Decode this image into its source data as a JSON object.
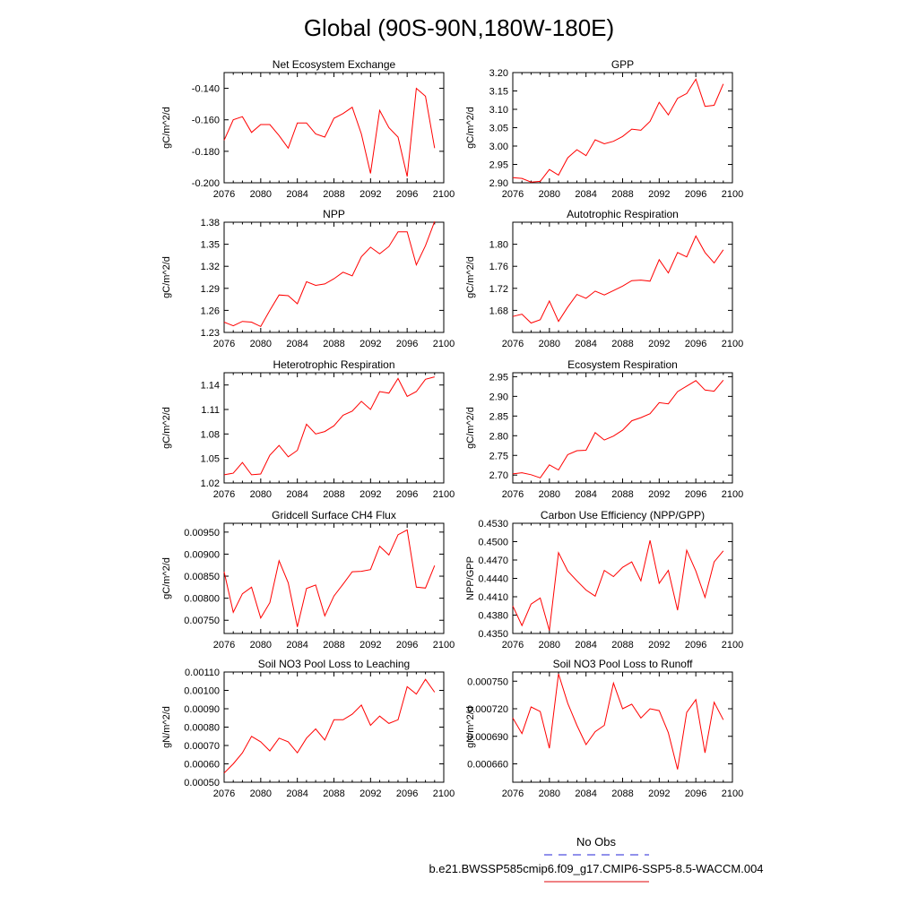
{
  "page_title": "Global (90S-90N,180W-180E)",
  "legend": {
    "obs_label": "No Obs",
    "obs_color": "#4f4fdf",
    "model_label": "b.e21.BWSSP585cmip6.f09_g17.CMIP6-SSP5-8.5-WACCM.004",
    "model_color": "#e8383b"
  },
  "series_color": "#ff0000",
  "chart_data": [
    {
      "type": "line",
      "title": "Net Ecosystem Exchange",
      "ylabel": "gC/m^2/d",
      "xlim": [
        2076,
        2100
      ],
      "ylim": [
        -0.2,
        -0.13
      ],
      "x_ticks": [
        "2076",
        "2080",
        "2084",
        "2088",
        "2092",
        "2096",
        "2100"
      ],
      "y_ticks": [
        -0.2,
        -0.18,
        -0.16,
        -0.14
      ],
      "y_tick_labels": [
        "-0.200",
        "-0.180",
        "-0.160",
        "-0.140"
      ],
      "x": [
        2076,
        2077,
        2078,
        2079,
        2080,
        2081,
        2082,
        2083,
        2084,
        2085,
        2086,
        2087,
        2088,
        2089,
        2090,
        2091,
        2092,
        2093,
        2094,
        2095,
        2096,
        2097,
        2098,
        2099
      ],
      "values": [
        -0.173,
        -0.16,
        -0.158,
        -0.168,
        -0.163,
        -0.163,
        -0.17,
        -0.178,
        -0.162,
        -0.162,
        -0.169,
        -0.171,
        -0.159,
        -0.156,
        -0.152,
        -0.169,
        -0.194,
        -0.154,
        -0.165,
        -0.171,
        -0.196,
        -0.14,
        -0.145,
        -0.178
      ]
    },
    {
      "type": "line",
      "title": "GPP",
      "ylabel": "gC/m^2/d",
      "xlim": [
        2076,
        2100
      ],
      "ylim": [
        2.9,
        3.2
      ],
      "x_ticks": [
        "2076",
        "2080",
        "2084",
        "2088",
        "2092",
        "2096",
        "2100"
      ],
      "y_ticks": [
        2.9,
        2.95,
        3.0,
        3.05,
        3.1,
        3.15,
        3.2
      ],
      "y_tick_labels": [
        "2.90",
        "2.95",
        "3.00",
        "3.05",
        "3.10",
        "3.15",
        "3.20"
      ],
      "x": [
        2076,
        2077,
        2078,
        2079,
        2080,
        2081,
        2082,
        2083,
        2084,
        2085,
        2086,
        2087,
        2088,
        2089,
        2090,
        2091,
        2092,
        2093,
        2094,
        2095,
        2096,
        2097,
        2098,
        2099
      ],
      "values": [
        2.914,
        2.912,
        2.902,
        2.904,
        2.936,
        2.921,
        2.968,
        2.99,
        2.974,
        3.017,
        3.006,
        3.013,
        3.026,
        3.046,
        3.043,
        3.067,
        3.119,
        3.085,
        3.13,
        3.143,
        3.182,
        3.108,
        3.111,
        3.169
      ]
    },
    {
      "type": "line",
      "title": "NPP",
      "ylabel": "gC/m^2/d",
      "xlim": [
        2076,
        2100
      ],
      "ylim": [
        1.23,
        1.38
      ],
      "x_ticks": [
        "2076",
        "2080",
        "2084",
        "2088",
        "2092",
        "2096",
        "2100"
      ],
      "y_ticks": [
        1.23,
        1.26,
        1.29,
        1.32,
        1.35,
        1.38
      ],
      "y_tick_labels": [
        "1.23",
        "1.26",
        "1.29",
        "1.32",
        "1.35",
        "1.38"
      ],
      "x": [
        2076,
        2077,
        2078,
        2079,
        2080,
        2081,
        2082,
        2083,
        2084,
        2085,
        2086,
        2087,
        2088,
        2089,
        2090,
        2091,
        2092,
        2093,
        2094,
        2095,
        2096,
        2097,
        2098,
        2099
      ],
      "values": [
        1.244,
        1.239,
        1.245,
        1.244,
        1.238,
        1.26,
        1.281,
        1.28,
        1.269,
        1.299,
        1.294,
        1.296,
        1.303,
        1.312,
        1.307,
        1.333,
        1.346,
        1.337,
        1.347,
        1.367,
        1.367,
        1.322,
        1.348,
        1.381
      ]
    },
    {
      "type": "line",
      "title": "Autotrophic Respiration",
      "ylabel": "gC/m^2/d",
      "xlim": [
        2076,
        2100
      ],
      "ylim": [
        1.64,
        1.84
      ],
      "x_ticks": [
        "2076",
        "2080",
        "2084",
        "2088",
        "2092",
        "2096",
        "2100"
      ],
      "y_ticks": [
        1.68,
        1.72,
        1.76,
        1.8
      ],
      "y_tick_labels": [
        "1.68",
        "1.72",
        "1.76",
        "1.80"
      ],
      "x": [
        2076,
        2077,
        2078,
        2079,
        2080,
        2081,
        2082,
        2083,
        2084,
        2085,
        2086,
        2087,
        2088,
        2089,
        2090,
        2091,
        2092,
        2093,
        2094,
        2095,
        2096,
        2097,
        2098,
        2099
      ],
      "values": [
        1.669,
        1.673,
        1.657,
        1.663,
        1.697,
        1.66,
        1.686,
        1.709,
        1.702,
        1.715,
        1.708,
        1.716,
        1.724,
        1.734,
        1.735,
        1.733,
        1.772,
        1.748,
        1.785,
        1.777,
        1.815,
        1.785,
        1.766,
        1.79
      ]
    },
    {
      "type": "line",
      "title": "Heterotrophic Respiration",
      "ylabel": "gC/m^2/d",
      "xlim": [
        2076,
        2100
      ],
      "ylim": [
        1.02,
        1.155
      ],
      "x_ticks": [
        "2076",
        "2080",
        "2084",
        "2088",
        "2092",
        "2096",
        "2100"
      ],
      "y_ticks": [
        1.02,
        1.05,
        1.08,
        1.11,
        1.14
      ],
      "y_tick_labels": [
        "1.02",
        "1.05",
        "1.08",
        "1.11",
        "1.14"
      ],
      "x": [
        2076,
        2077,
        2078,
        2079,
        2080,
        2081,
        2082,
        2083,
        2084,
        2085,
        2086,
        2087,
        2088,
        2089,
        2090,
        2091,
        2092,
        2093,
        2094,
        2095,
        2096,
        2097,
        2098,
        2099
      ],
      "values": [
        1.03,
        1.032,
        1.045,
        1.03,
        1.031,
        1.054,
        1.066,
        1.052,
        1.06,
        1.092,
        1.08,
        1.083,
        1.09,
        1.103,
        1.108,
        1.12,
        1.11,
        1.132,
        1.13,
        1.148,
        1.126,
        1.132,
        1.147,
        1.15
      ]
    },
    {
      "type": "line",
      "title": "Ecosystem Respiration",
      "ylabel": "gC/m^2/d",
      "xlim": [
        2076,
        2100
      ],
      "ylim": [
        2.68,
        2.96
      ],
      "x_ticks": [
        "2076",
        "2080",
        "2084",
        "2088",
        "2092",
        "2096",
        "2100"
      ],
      "y_ticks": [
        2.7,
        2.75,
        2.8,
        2.85,
        2.9,
        2.95
      ],
      "y_tick_labels": [
        "2.70",
        "2.75",
        "2.80",
        "2.85",
        "2.90",
        "2.95"
      ],
      "x": [
        2076,
        2077,
        2078,
        2079,
        2080,
        2081,
        2082,
        2083,
        2084,
        2085,
        2086,
        2087,
        2088,
        2089,
        2090,
        2091,
        2092,
        2093,
        2094,
        2095,
        2096,
        2097,
        2098,
        2099
      ],
      "values": [
        2.703,
        2.706,
        2.701,
        2.693,
        2.726,
        2.713,
        2.752,
        2.762,
        2.763,
        2.808,
        2.789,
        2.799,
        2.814,
        2.838,
        2.846,
        2.856,
        2.884,
        2.881,
        2.912,
        2.926,
        2.94,
        2.916,
        2.913,
        2.941
      ]
    },
    {
      "type": "line",
      "title": "Gridcell Surface CH4 Flux",
      "ylabel": "gC/m^2/d",
      "xlim": [
        2076,
        2100
      ],
      "ylim": [
        0.0072,
        0.0097
      ],
      "x_ticks": [
        "2076",
        "2080",
        "2084",
        "2088",
        "2092",
        "2096",
        "2100"
      ],
      "y_ticks": [
        0.0075,
        0.008,
        0.0085,
        0.009,
        0.0095
      ],
      "y_tick_labels": [
        "0.00750",
        "0.00800",
        "0.00850",
        "0.00900",
        "0.00950"
      ],
      "x": [
        2076,
        2077,
        2078,
        2079,
        2080,
        2081,
        2082,
        2083,
        2084,
        2085,
        2086,
        2087,
        2088,
        2089,
        2090,
        2091,
        2092,
        2093,
        2094,
        2095,
        2096,
        2097,
        2098,
        2099
      ],
      "values": [
        0.0086,
        0.00768,
        0.0081,
        0.00825,
        0.00755,
        0.0079,
        0.00885,
        0.00835,
        0.00735,
        0.00822,
        0.0083,
        0.0076,
        0.00805,
        0.00832,
        0.0086,
        0.00861,
        0.00865,
        0.00918,
        0.00898,
        0.00944,
        0.00955,
        0.00825,
        0.00823,
        0.00874
      ]
    },
    {
      "type": "line",
      "title": "Carbon Use Efficiency (NPP/GPP)",
      "ylabel": "NPP/GPP",
      "xlim": [
        2076,
        2100
      ],
      "ylim": [
        0.435,
        0.453
      ],
      "x_ticks": [
        "2076",
        "2080",
        "2084",
        "2088",
        "2092",
        "2096",
        "2100"
      ],
      "y_ticks": [
        0.435,
        0.438,
        0.441,
        0.444,
        0.447,
        0.45,
        0.453
      ],
      "y_tick_labels": [
        "0.4350",
        "0.4380",
        "0.4410",
        "0.4440",
        "0.4470",
        "0.4500",
        "0.4530"
      ],
      "x": [
        2076,
        2077,
        2078,
        2079,
        2080,
        2081,
        2082,
        2083,
        2084,
        2085,
        2086,
        2087,
        2088,
        2089,
        2090,
        2091,
        2092,
        2093,
        2094,
        2095,
        2096,
        2097,
        2098,
        2099
      ],
      "values": [
        0.4395,
        0.4363,
        0.4398,
        0.4408,
        0.4355,
        0.4482,
        0.4452,
        0.4436,
        0.4421,
        0.4411,
        0.4453,
        0.4443,
        0.4458,
        0.4467,
        0.4436,
        0.4502,
        0.4432,
        0.4453,
        0.4388,
        0.4486,
        0.4452,
        0.4409,
        0.4467,
        0.4485
      ]
    },
    {
      "type": "line",
      "title": "Soil NO3 Pool Loss to Leaching",
      "ylabel": "gN/m^2/d",
      "xlim": [
        2076,
        2100
      ],
      "ylim": [
        0.0005,
        0.0011
      ],
      "x_ticks": [
        "2076",
        "2080",
        "2084",
        "2088",
        "2092",
        "2096",
        "2100"
      ],
      "y_ticks": [
        0.0005,
        0.0006,
        0.0007,
        0.0008,
        0.0009,
        0.001,
        0.0011
      ],
      "y_tick_labels": [
        "0.00050",
        "0.00060",
        "0.00070",
        "0.00080",
        "0.00090",
        "0.00100",
        "0.00110"
      ],
      "extra_y_ticks": [
        0.00055,
        0.00065,
        0.00075,
        0.00085,
        0.00095,
        0.00105
      ],
      "extra_y_tick_labels": [
        "",
        "",
        "",
        "",
        "",
        ""
      ],
      "x": [
        2076,
        2077,
        2078,
        2079,
        2080,
        2081,
        2082,
        2083,
        2084,
        2085,
        2086,
        2087,
        2088,
        2089,
        2090,
        2091,
        2092,
        2093,
        2094,
        2095,
        2096,
        2097,
        2098,
        2099
      ],
      "values": [
        0.00055,
        0.0006,
        0.00066,
        0.00075,
        0.00072,
        0.00067,
        0.00074,
        0.00072,
        0.00066,
        0.00074,
        0.00079,
        0.00073,
        0.00084,
        0.00084,
        0.00087,
        0.00092,
        0.00081,
        0.00086,
        0.00082,
        0.00084,
        0.00102,
        0.00098,
        0.00106,
        0.00099
      ]
    },
    {
      "type": "line",
      "title": "Soil NO3 Pool Loss to Runoff",
      "ylabel": "gN/m^2/d",
      "xlim": [
        2076,
        2100
      ],
      "ylim": [
        0.00064,
        0.00076
      ],
      "x_ticks": [
        "2076",
        "2080",
        "2084",
        "2088",
        "2092",
        "2096",
        "2100"
      ],
      "y_ticks": [
        0.00066,
        0.00069,
        0.00072,
        0.00075
      ],
      "y_tick_labels": [
        "0.000660",
        "0.000690",
        "0.000720",
        "0.000750"
      ],
      "x": [
        2076,
        2077,
        2078,
        2079,
        2080,
        2081,
        2082,
        2083,
        2084,
        2085,
        2086,
        2087,
        2088,
        2089,
        2090,
        2091,
        2092,
        2093,
        2094,
        2095,
        2096,
        2097,
        2098,
        2099
      ],
      "values": [
        0.00071,
        0.000693,
        0.000722,
        0.000717,
        0.000677,
        0.000758,
        0.000726,
        0.000702,
        0.000681,
        0.000695,
        0.000702,
        0.000748,
        0.00072,
        0.000725,
        0.00071,
        0.00072,
        0.000718,
        0.000694,
        0.000654,
        0.000716,
        0.00073,
        0.000672,
        0.000727,
        0.000708
      ]
    }
  ]
}
